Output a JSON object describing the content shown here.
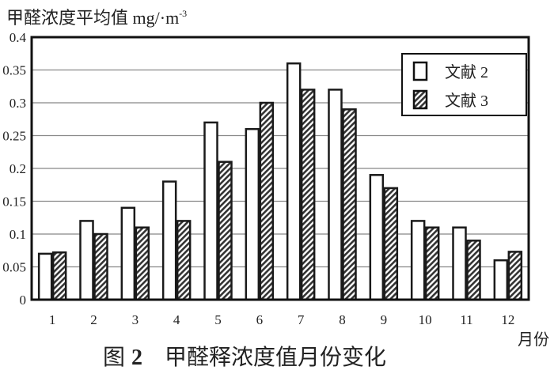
{
  "chart_data": {
    "type": "bar",
    "ylabel": "甲醛浓度平均值 mg/·m-3",
    "ylabel_main": "甲醛浓度平均值 mg",
    "ylabel_unit": "/·m",
    "ylabel_exp": "-3",
    "xlabel": "月份",
    "caption_prefix": "图",
    "caption_num": "2",
    "caption_text": "甲醛释浓度值月份变化",
    "categories": [
      "1",
      "2",
      "3",
      "4",
      "5",
      "6",
      "7",
      "8",
      "9",
      "10",
      "11",
      "12"
    ],
    "ylim": [
      0,
      0.4
    ],
    "yticks": [
      "0",
      "0.05",
      "0.1",
      "0.15",
      "0.2",
      "0.25",
      "0.3",
      "0.35",
      "0.4"
    ],
    "grid": true,
    "legend_position": "top-right",
    "series": [
      {
        "name": "文献 2",
        "fill": "white",
        "values": [
          0.07,
          0.12,
          0.14,
          0.18,
          0.27,
          0.26,
          0.36,
          0.32,
          0.19,
          0.12,
          0.11,
          0.06
        ]
      },
      {
        "name": "文献 3",
        "fill": "hatched",
        "values": [
          0.072,
          0.1,
          0.11,
          0.12,
          0.21,
          0.3,
          0.32,
          0.29,
          0.17,
          0.11,
          0.09,
          0.073
        ]
      }
    ],
    "colors": {
      "stroke": "#1a1a1a",
      "grid": "#888888"
    }
  }
}
